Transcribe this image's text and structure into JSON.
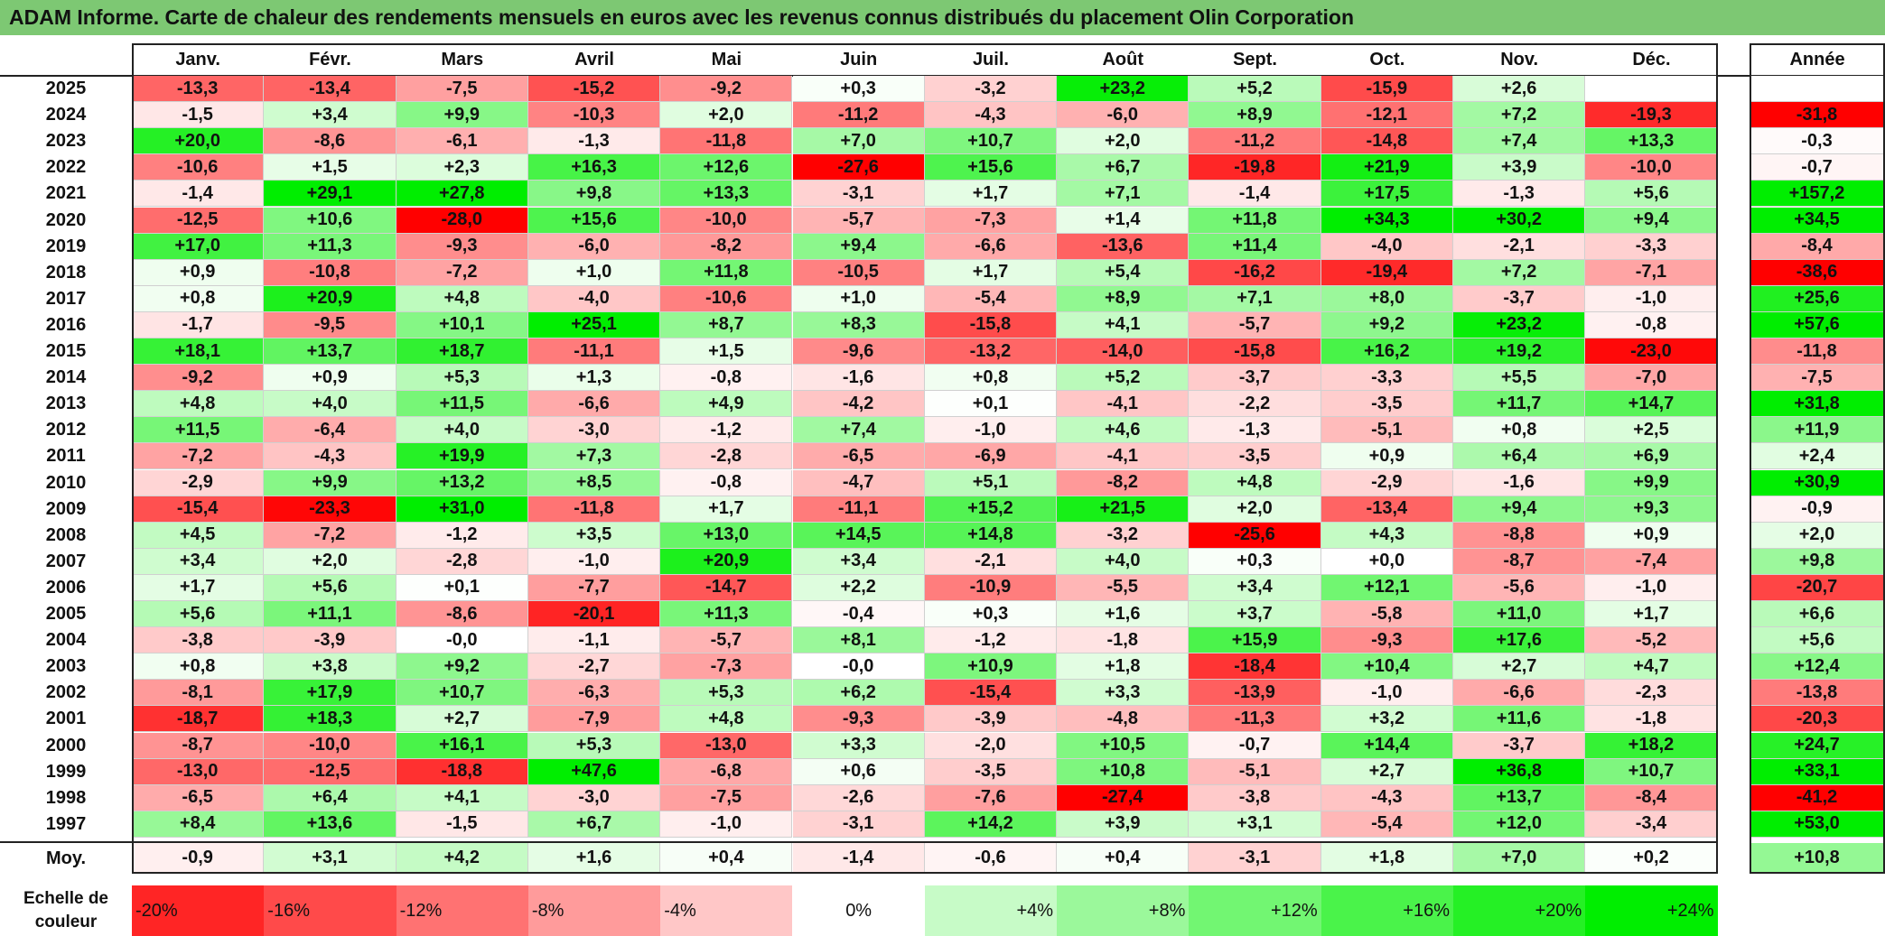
{
  "title": "ADAM Informe. Carte de chaleur des rendements mensuels en euros avec les revenus connus distribués du placement Olin Corporation",
  "chart_data": {
    "type": "heatmap",
    "columns": [
      "Janv.",
      "Févr.",
      "Mars",
      "Avril",
      "Mai",
      "Juin",
      "Juil.",
      "Août",
      "Sept.",
      "Oct.",
      "Nov.",
      "Déc."
    ],
    "year_header": "Année",
    "rows": [
      {
        "year": "2025",
        "values": [
          "-13,3",
          "-13,4",
          "-7,5",
          "-15,2",
          "-9,2",
          "+0,3",
          "-3,2",
          "+23,2",
          "+5,2",
          "-15,9",
          "+2,6",
          ""
        ],
        "annual": ""
      },
      {
        "year": "2024",
        "values": [
          "-1,5",
          "+3,4",
          "+9,9",
          "-10,3",
          "+2,0",
          "-11,2",
          "-4,3",
          "-6,0",
          "+8,9",
          "-12,1",
          "+7,2",
          "-19,3"
        ],
        "annual": "-31,8"
      },
      {
        "year": "2023",
        "values": [
          "+20,0",
          "-8,6",
          "-6,1",
          "-1,3",
          "-11,8",
          "+7,0",
          "+10,7",
          "+2,0",
          "-11,2",
          "-14,8",
          "+7,4",
          "+13,3"
        ],
        "annual": "-0,3"
      },
      {
        "year": "2022",
        "values": [
          "-10,6",
          "+1,5",
          "+2,3",
          "+16,3",
          "+12,6",
          "-27,6",
          "+15,6",
          "+6,7",
          "-19,8",
          "+21,9",
          "+3,9",
          "-10,0"
        ],
        "annual": "-0,7"
      },
      {
        "year": "2021",
        "values": [
          "-1,4",
          "+29,1",
          "+27,8",
          "+9,8",
          "+13,3",
          "-3,1",
          "+1,7",
          "+7,1",
          "-1,4",
          "+17,5",
          "-1,3",
          "+5,6"
        ],
        "annual": "+157,2"
      },
      {
        "year": "2020",
        "values": [
          "-12,5",
          "+10,6",
          "-28,0",
          "+15,6",
          "-10,0",
          "-5,7",
          "-7,3",
          "+1,4",
          "+11,8",
          "+34,3",
          "+30,2",
          "+9,4"
        ],
        "annual": "+34,5"
      },
      {
        "year": "2019",
        "values": [
          "+17,0",
          "+11,3",
          "-9,3",
          "-6,0",
          "-8,2",
          "+9,4",
          "-6,6",
          "-13,6",
          "+11,4",
          "-4,0",
          "-2,1",
          "-3,3"
        ],
        "annual": "-8,4"
      },
      {
        "year": "2018",
        "values": [
          "+0,9",
          "-10,8",
          "-7,2",
          "+1,0",
          "+11,8",
          "-10,5",
          "+1,7",
          "+5,4",
          "-16,2",
          "-19,4",
          "+7,2",
          "-7,1"
        ],
        "annual": "-38,6"
      },
      {
        "year": "2017",
        "values": [
          "+0,8",
          "+20,9",
          "+4,8",
          "-4,0",
          "-10,6",
          "+1,0",
          "-5,4",
          "+8,9",
          "+7,1",
          "+8,0",
          "-3,7",
          "-1,0"
        ],
        "annual": "+25,6"
      },
      {
        "year": "2016",
        "values": [
          "-1,7",
          "-9,5",
          "+10,1",
          "+25,1",
          "+8,7",
          "+8,3",
          "-15,8",
          "+4,1",
          "-5,7",
          "+9,2",
          "+23,2",
          "-0,8"
        ],
        "annual": "+57,6"
      },
      {
        "year": "2015",
        "values": [
          "+18,1",
          "+13,7",
          "+18,7",
          "-11,1",
          "+1,5",
          "-9,6",
          "-13,2",
          "-14,0",
          "-15,8",
          "+16,2",
          "+19,2",
          "-23,0"
        ],
        "annual": "-11,8"
      },
      {
        "year": "2014",
        "values": [
          "-9,2",
          "+0,9",
          "+5,3",
          "+1,3",
          "-0,8",
          "-1,6",
          "+0,8",
          "+5,2",
          "-3,7",
          "-3,3",
          "+5,5",
          "-7,0"
        ],
        "annual": "-7,5"
      },
      {
        "year": "2013",
        "values": [
          "+4,8",
          "+4,0",
          "+11,5",
          "-6,6",
          "+4,9",
          "-4,2",
          "+0,1",
          "-4,1",
          "-2,2",
          "-3,5",
          "+11,7",
          "+14,7"
        ],
        "annual": "+31,8"
      },
      {
        "year": "2012",
        "values": [
          "+11,5",
          "-6,4",
          "+4,0",
          "-3,0",
          "-1,2",
          "+7,4",
          "-1,0",
          "+4,6",
          "-1,3",
          "-5,1",
          "+0,8",
          "+2,5"
        ],
        "annual": "+11,9"
      },
      {
        "year": "2011",
        "values": [
          "-7,2",
          "-4,3",
          "+19,9",
          "+7,3",
          "-2,8",
          "-6,5",
          "-6,9",
          "-4,1",
          "-3,5",
          "+0,9",
          "+6,4",
          "+6,9"
        ],
        "annual": "+2,4"
      },
      {
        "year": "2010",
        "values": [
          "-2,9",
          "+9,9",
          "+13,2",
          "+8,5",
          "-0,8",
          "-4,7",
          "+5,1",
          "-8,2",
          "+4,8",
          "-2,9",
          "-1,6",
          "+9,9"
        ],
        "annual": "+30,9"
      },
      {
        "year": "2009",
        "values": [
          "-15,4",
          "-23,3",
          "+31,0",
          "-11,8",
          "+1,7",
          "-11,1",
          "+15,2",
          "+21,5",
          "+2,0",
          "-13,4",
          "+9,4",
          "+9,3"
        ],
        "annual": "-0,9"
      },
      {
        "year": "2008",
        "values": [
          "+4,5",
          "-7,2",
          "-1,2",
          "+3,5",
          "+13,0",
          "+14,5",
          "+14,8",
          "-3,2",
          "-25,6",
          "+4,3",
          "-8,8",
          "+0,9"
        ],
        "annual": "+2,0"
      },
      {
        "year": "2007",
        "values": [
          "+3,4",
          "+2,0",
          "-2,8",
          "-1,0",
          "+20,9",
          "+3,4",
          "-2,1",
          "+4,0",
          "+0,3",
          "+0,0",
          "-8,7",
          "-7,4"
        ],
        "annual": "+9,8"
      },
      {
        "year": "2006",
        "values": [
          "+1,7",
          "+5,6",
          "+0,1",
          "-7,7",
          "-14,7",
          "+2,2",
          "-10,9",
          "-5,5",
          "+3,4",
          "+12,1",
          "-5,6",
          "-1,0"
        ],
        "annual": "-20,7"
      },
      {
        "year": "2005",
        "values": [
          "+5,6",
          "+11,1",
          "-8,6",
          "-20,1",
          "+11,3",
          "-0,4",
          "+0,3",
          "+1,6",
          "+3,7",
          "-5,8",
          "+11,0",
          "+1,7"
        ],
        "annual": "+6,6"
      },
      {
        "year": "2004",
        "values": [
          "-3,8",
          "-3,9",
          "-0,0",
          "-1,1",
          "-5,7",
          "+8,1",
          "-1,2",
          "-1,8",
          "+15,9",
          "-9,3",
          "+17,6",
          "-5,2"
        ],
        "annual": "+5,6"
      },
      {
        "year": "2003",
        "values": [
          "+0,8",
          "+3,8",
          "+9,2",
          "-2,7",
          "-7,3",
          "-0,0",
          "+10,9",
          "+1,8",
          "-18,4",
          "+10,4",
          "+2,7",
          "+4,7"
        ],
        "annual": "+12,4"
      },
      {
        "year": "2002",
        "values": [
          "-8,1",
          "+17,9",
          "+10,7",
          "-6,3",
          "+5,3",
          "+6,2",
          "-15,4",
          "+3,3",
          "-13,9",
          "-1,0",
          "-6,6",
          "-2,3"
        ],
        "annual": "-13,8"
      },
      {
        "year": "2001",
        "values": [
          "-18,7",
          "+18,3",
          "+2,7",
          "-7,9",
          "+4,8",
          "-9,3",
          "-3,9",
          "-4,8",
          "-11,3",
          "+3,2",
          "+11,6",
          "-1,8"
        ],
        "annual": "-20,3"
      },
      {
        "year": "2000",
        "values": [
          "-8,7",
          "-10,0",
          "+16,1",
          "+5,3",
          "-13,0",
          "+3,3",
          "-2,0",
          "+10,5",
          "-0,7",
          "+14,4",
          "-3,7",
          "+18,2"
        ],
        "annual": "+24,7"
      },
      {
        "year": "1999",
        "values": [
          "-13,0",
          "-12,5",
          "-18,8",
          "+47,6",
          "-6,8",
          "+0,6",
          "-3,5",
          "+10,8",
          "-5,1",
          "+2,7",
          "+36,8",
          "+10,7"
        ],
        "annual": "+33,1"
      },
      {
        "year": "1998",
        "values": [
          "-6,5",
          "+6,4",
          "+4,1",
          "-3,0",
          "-7,5",
          "-2,6",
          "-7,6",
          "-27,4",
          "-3,8",
          "-4,3",
          "+13,7",
          "-8,4"
        ],
        "annual": "-41,2"
      },
      {
        "year": "1997",
        "values": [
          "+8,4",
          "+13,6",
          "-1,5",
          "+6,7",
          "-1,0",
          "-3,1",
          "+14,2",
          "+3,9",
          "+3,1",
          "-5,4",
          "+12,0",
          "-3,4"
        ],
        "annual": "+53,0"
      }
    ],
    "average": {
      "label": "Moy.",
      "values": [
        "-0,9",
        "+3,1",
        "+4,2",
        "+1,6",
        "+0,4",
        "-1,4",
        "-0,6",
        "+0,4",
        "-3,1",
        "+1,8",
        "+7,0",
        "+0,2"
      ],
      "annual": "+10,8"
    },
    "color_scale": {
      "label": "Echelle de couleur",
      "stops": [
        "-20%",
        "-16%",
        "-12%",
        "-8%",
        "-4%",
        "0%",
        "+4%",
        "+8%",
        "+12%",
        "+16%",
        "+20%",
        "+24%"
      ],
      "negative_color": "#ff0000",
      "positive_color": "#00ee00",
      "neutral_color": "#ffffff"
    }
  }
}
